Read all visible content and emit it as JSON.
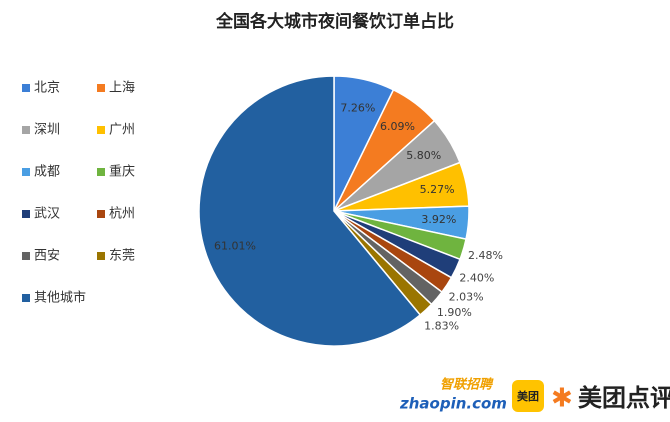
{
  "chart_data": {
    "type": "pie",
    "title": "全国各大城市夜间餐饮订单占比",
    "categories": [
      "北京",
      "上海",
      "深圳",
      "广州",
      "成都",
      "重庆",
      "武汉",
      "杭州",
      "西安",
      "东莞",
      "其他城市"
    ],
    "values": [
      7.26,
      6.09,
      5.8,
      5.27,
      3.92,
      2.48,
      2.4,
      2.03,
      1.9,
      1.83,
      61.01
    ],
    "value_labels": [
      "7.26%",
      "6.09%",
      "5.80%",
      "5.27%",
      "3.92%",
      "2.48%",
      "2.40%",
      "2.03%",
      "1.90%",
      "1.83%",
      "61.01%"
    ],
    "colors": [
      "#3c7fd6",
      "#f47b20",
      "#a5a5a5",
      "#ffc000",
      "#4a9ee3",
      "#6fb43f",
      "#1f3e79",
      "#a9460f",
      "#636363",
      "#9a7500",
      "#2260a0"
    ],
    "legend": "left"
  },
  "logos": {
    "zhaopin_cn": "智联招聘",
    "zhaopin_en": "zhaopin.com",
    "meituan_icon": "美团",
    "meituan_dianping": "美团点评"
  }
}
